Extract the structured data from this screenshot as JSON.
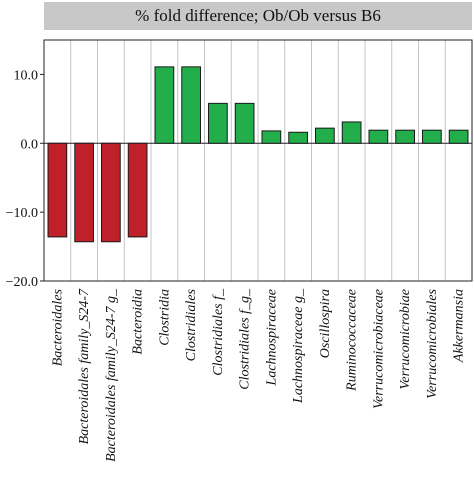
{
  "chart_data": {
    "type": "bar",
    "title": "% fold difference; Ob/Ob versus B6",
    "xlabel": "",
    "ylabel": "",
    "ylim": [
      -20,
      15
    ],
    "yticks": [
      {
        "value": 10,
        "label": "10.0"
      },
      {
        "value": 0,
        "label": "0.0"
      },
      {
        "value": -10,
        "label": "−10.0"
      },
      {
        "value": -20,
        "label": "−20.0"
      }
    ],
    "grid": "vertical",
    "categories": [
      "Bacteroidales",
      "Bacteroidales family_S24-7",
      "Bacteroidales family_S24-7 g_",
      "Bacteroidia",
      "Clostridia",
      "Clostridiales",
      "Clostridiales f_",
      "Clostridiales f_g_",
      "Lachnospiraceae",
      "Lachnospiraceae g_",
      "Oscillospira",
      "Ruminococcaceae",
      "Verrucomicrobiaceae",
      "Verrucomicrobiae",
      "Verrucomicrobiales",
      "Akkermansia"
    ],
    "values": [
      -13.6,
      -14.3,
      -14.3,
      -13.6,
      11.1,
      11.1,
      5.8,
      5.8,
      1.8,
      1.6,
      2.2,
      3.1,
      1.9,
      1.9,
      1.9,
      1.9
    ],
    "colors": {
      "negative": "#c0202a",
      "positive": "#22ae4a"
    }
  }
}
